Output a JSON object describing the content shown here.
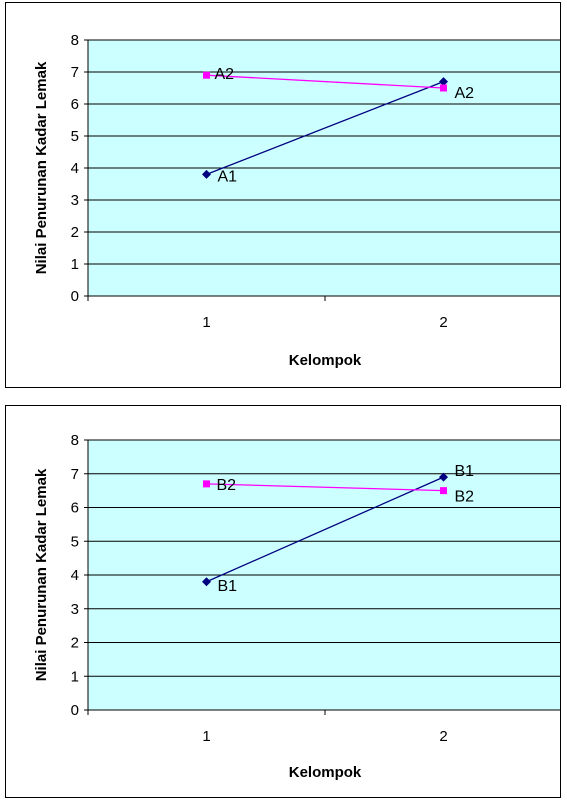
{
  "chart_data": [
    {
      "type": "line",
      "xlabel": "Kelompok",
      "ylabel": "Nilai Penurunan Kadar Lemak",
      "categories": [
        "1",
        "2"
      ],
      "ylim": [
        0,
        8
      ],
      "yticks": [
        "0",
        "1",
        "2",
        "3",
        "4",
        "5",
        "6",
        "7",
        "8"
      ],
      "grid": true,
      "plot_background": "#ccffff",
      "series": [
        {
          "values": [
            3.8,
            6.7
          ],
          "color": "#000080",
          "marker": "diamond",
          "point_labels": [
            "A1",
            ""
          ]
        },
        {
          "values": [
            6.9,
            6.5
          ],
          "color": "#ff00ff",
          "marker": "square",
          "point_labels": [
            "A2",
            "A2"
          ]
        }
      ]
    },
    {
      "type": "line",
      "xlabel": "Kelompok",
      "ylabel": "Nilai Penurunan Kadar Lemak",
      "categories": [
        "1",
        "2"
      ],
      "ylim": [
        0,
        8
      ],
      "yticks": [
        "0",
        "1",
        "2",
        "3",
        "4",
        "5",
        "6",
        "7",
        "8"
      ],
      "grid": true,
      "plot_background": "#ccffff",
      "series": [
        {
          "values": [
            3.8,
            6.9
          ],
          "color": "#000080",
          "marker": "diamond",
          "point_labels": [
            "B1",
            "B1"
          ]
        },
        {
          "values": [
            6.7,
            6.5
          ],
          "color": "#ff00ff",
          "marker": "square",
          "point_labels": [
            "B2",
            "B2"
          ]
        }
      ]
    }
  ]
}
